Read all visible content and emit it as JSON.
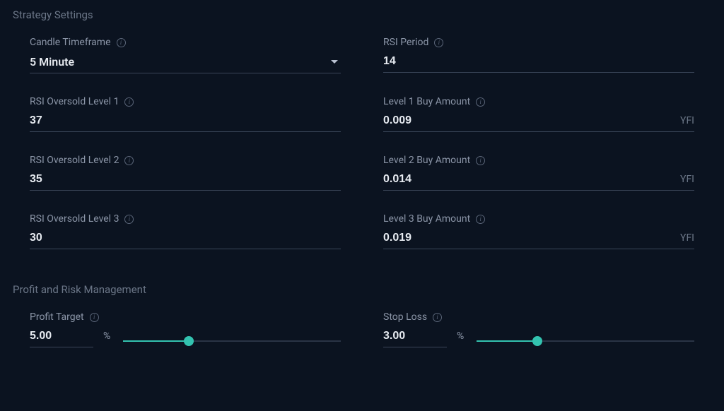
{
  "sections": {
    "strategy": {
      "title": "Strategy Settings"
    },
    "risk": {
      "title": "Profit and Risk Management"
    }
  },
  "fields": {
    "candleTimeframe": {
      "label": "Candle Timeframe",
      "value": "5 Minute"
    },
    "rsiPeriod": {
      "label": "RSI Period",
      "value": "14"
    },
    "rsiOversold1": {
      "label": "RSI Oversold Level 1",
      "value": "37"
    },
    "buyAmount1": {
      "label": "Level 1 Buy Amount",
      "value": "0.009",
      "unit": "YFI"
    },
    "rsiOversold2": {
      "label": "RSI Oversold Level 2",
      "value": "35"
    },
    "buyAmount2": {
      "label": "Level 2 Buy Amount",
      "value": "0.014",
      "unit": "YFI"
    },
    "rsiOversold3": {
      "label": "RSI Oversold Level 3",
      "value": "30"
    },
    "buyAmount3": {
      "label": "Level 3 Buy Amount",
      "value": "0.019",
      "unit": "YFI"
    },
    "profitTarget": {
      "label": "Profit Target",
      "value": "5.00",
      "unit": "%",
      "sliderPct": 30
    },
    "stopLoss": {
      "label": "Stop Loss",
      "value": "3.00",
      "unit": "%",
      "sliderPct": 28
    }
  },
  "style": {
    "background": "#0b1320",
    "textPrimary": "#e6eaf0",
    "textMuted": "#8b95a7",
    "sectionTitle": "#6b7687",
    "underline": "#3a4558",
    "sliderTrack": "#2a3445",
    "accent": "#33c3b0"
  }
}
